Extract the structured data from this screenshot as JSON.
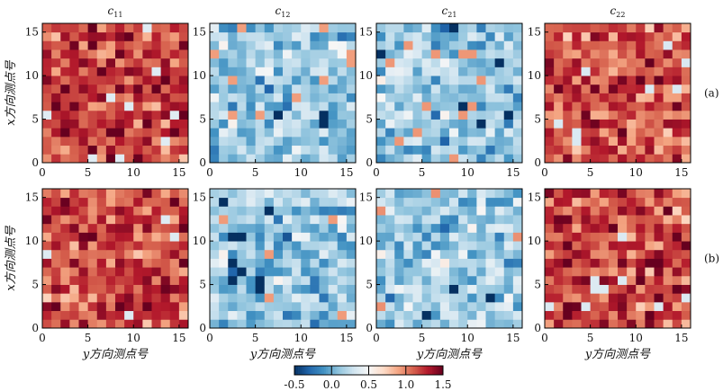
{
  "chart_data": {
    "type": "heatmap",
    "grid_size": 16,
    "x_range": [
      0,
      16
    ],
    "y_range": [
      0,
      16
    ],
    "x_ticks": [
      0,
      5,
      10,
      15
    ],
    "y_ticks": [
      0,
      5,
      10,
      15
    ],
    "xlabel": "y方向测点号",
    "ylabel": "x方向测点号",
    "column_titles": [
      {
        "base": "c",
        "sub": "11"
      },
      {
        "base": "c",
        "sub": "12"
      },
      {
        "base": "c",
        "sub": "21"
      },
      {
        "base": "c",
        "sub": "22"
      }
    ],
    "row_labels": [
      "(a)",
      "(b)"
    ],
    "colorbar": {
      "range": [
        -0.5,
        1.5
      ],
      "ticks": [
        -0.5,
        0.0,
        0.5,
        1.0,
        1.5
      ],
      "tick_labels": [
        "-0.5",
        "0.0",
        "0.5",
        "1.0",
        "1.5"
      ],
      "colormap": [
        "#053061",
        "#2166ac",
        "#4393c3",
        "#92c5de",
        "#d1e5f0",
        "#f7f7f7",
        "#fddbc7",
        "#f4a582",
        "#d6604d",
        "#b2182b",
        "#67001f"
      ]
    },
    "panel_means": {
      "row_a": [
        1.18,
        0.12,
        0.14,
        1.15
      ],
      "row_b": [
        1.17,
        0.13,
        0.16,
        1.16
      ]
    },
    "panel_spread": 0.32,
    "panel_seeds": {
      "row_a": [
        11,
        12,
        21,
        22
      ],
      "row_b": [
        111,
        121,
        211,
        221
      ]
    }
  }
}
